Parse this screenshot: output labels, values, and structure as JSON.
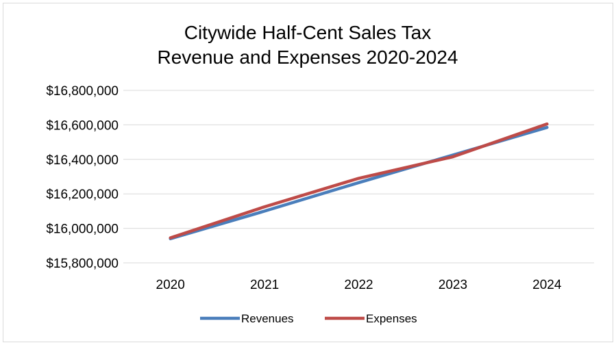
{
  "chart_data": {
    "type": "line",
    "title": [
      "Citywide Half-Cent Sales Tax",
      "Revenue and Expenses 2020-2024"
    ],
    "xlabel": "",
    "ylabel": "",
    "categories": [
      "2020",
      "2021",
      "2022",
      "2023",
      "2024"
    ],
    "y_ticks": [
      15800000,
      16000000,
      16200000,
      16400000,
      16600000,
      16800000
    ],
    "y_tick_labels": [
      "$15,800,000",
      "$16,000,000",
      "$16,200,000",
      "$16,400,000",
      "$16,600,000",
      "$16,800,000"
    ],
    "ylim": [
      15800000,
      16800000
    ],
    "grid": true,
    "legend_position": "bottom",
    "series": [
      {
        "name": "Revenues",
        "color": "#4a7ebb",
        "values": [
          15940000,
          16100000,
          16265000,
          16425000,
          16585000
        ]
      },
      {
        "name": "Expenses",
        "color": "#be4b48",
        "values": [
          15945000,
          16125000,
          16290000,
          16415000,
          16605000
        ]
      }
    ]
  }
}
